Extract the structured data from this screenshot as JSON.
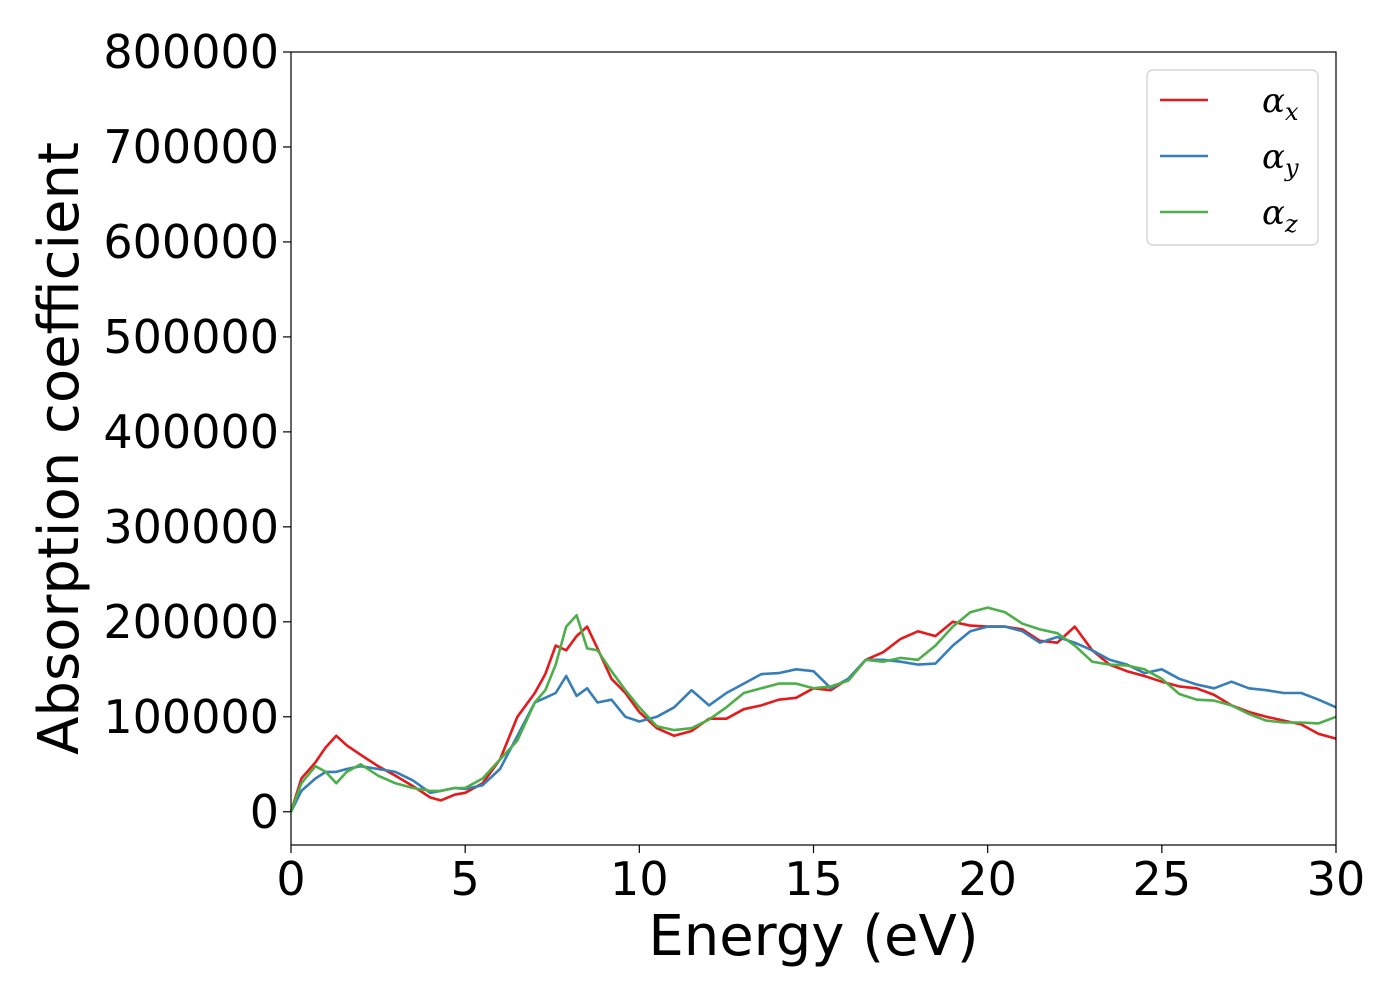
{
  "chart_data": {
    "type": "line",
    "title": "",
    "xlabel": "Energy (eV)",
    "ylabel": "Absorption coefficient",
    "xlim": [
      0,
      30
    ],
    "ylim": [
      -35000,
      800000
    ],
    "xticks": [
      0,
      5,
      10,
      15,
      20,
      25,
      30
    ],
    "yticks": [
      0,
      100000,
      200000,
      300000,
      400000,
      500000,
      600000,
      700000,
      800000
    ],
    "xtick_labels": [
      "0",
      "5",
      "10",
      "15",
      "20",
      "25",
      "30"
    ],
    "ytick_labels": [
      "0",
      "100000",
      "200000",
      "300000",
      "400000",
      "500000",
      "600000",
      "700000",
      "800000"
    ],
    "grid": false,
    "legend_position": "top-right",
    "series": [
      {
        "name": "αx",
        "base": "α",
        "sub": "x",
        "color": "#e41a1c",
        "x": [
          0,
          0.3,
          0.7,
          1.0,
          1.3,
          1.6,
          2.0,
          2.5,
          3.0,
          3.5,
          4.0,
          4.3,
          4.7,
          5.0,
          5.5,
          6.0,
          6.5,
          7.0,
          7.3,
          7.6,
          7.9,
          8.2,
          8.5,
          8.8,
          9.2,
          9.6,
          10.0,
          10.5,
          11.0,
          11.5,
          12.0,
          12.5,
          13.0,
          13.5,
          14.0,
          14.5,
          15.0,
          15.5,
          16.0,
          16.5,
          17.0,
          17.5,
          18.0,
          18.5,
          19.0,
          19.5,
          20.0,
          20.5,
          21.0,
          21.5,
          22.0,
          22.5,
          23.0,
          23.5,
          24.0,
          24.5,
          25.0,
          25.5,
          26.0,
          26.5,
          27.0,
          27.5,
          28.0,
          28.5,
          29.0,
          29.5,
          30.0
        ],
        "y": [
          0,
          35000,
          52000,
          68000,
          80000,
          70000,
          60000,
          48000,
          38000,
          27000,
          15000,
          12000,
          18000,
          20000,
          30000,
          55000,
          100000,
          125000,
          145000,
          175000,
          170000,
          185000,
          195000,
          172000,
          140000,
          125000,
          105000,
          88000,
          80000,
          85000,
          98000,
          98000,
          108000,
          112000,
          118000,
          120000,
          130000,
          128000,
          140000,
          160000,
          168000,
          182000,
          190000,
          185000,
          200000,
          196000,
          195000,
          195000,
          192000,
          180000,
          178000,
          195000,
          170000,
          155000,
          148000,
          143000,
          137000,
          132000,
          130000,
          123000,
          112000,
          105000,
          100000,
          96000,
          92000,
          82000,
          77000
        ]
      },
      {
        "name": "αy",
        "base": "α",
        "sub": "y",
        "color": "#377eb8",
        "x": [
          0,
          0.3,
          0.7,
          1.0,
          1.3,
          1.6,
          2.0,
          2.5,
          3.0,
          3.5,
          4.0,
          4.3,
          4.7,
          5.0,
          5.5,
          6.0,
          6.5,
          7.0,
          7.3,
          7.6,
          7.9,
          8.2,
          8.5,
          8.8,
          9.2,
          9.6,
          10.0,
          10.5,
          11.0,
          11.5,
          12.0,
          12.5,
          13.0,
          13.5,
          14.0,
          14.5,
          15.0,
          15.5,
          16.0,
          16.5,
          17.0,
          17.5,
          18.0,
          18.5,
          19.0,
          19.5,
          20.0,
          20.5,
          21.0,
          21.5,
          22.0,
          22.5,
          23.0,
          23.5,
          24.0,
          24.5,
          25.0,
          25.5,
          26.0,
          26.5,
          27.0,
          27.5,
          28.0,
          28.5,
          29.0,
          29.5,
          30.0
        ],
        "y": [
          0,
          22000,
          35000,
          42000,
          42000,
          45000,
          48000,
          45000,
          42000,
          33000,
          20000,
          22000,
          25000,
          24000,
          28000,
          45000,
          80000,
          115000,
          120000,
          125000,
          143000,
          122000,
          130000,
          115000,
          118000,
          100000,
          95000,
          100000,
          110000,
          128000,
          112000,
          125000,
          135000,
          145000,
          146000,
          150000,
          148000,
          130000,
          140000,
          160000,
          160000,
          158000,
          155000,
          156000,
          175000,
          190000,
          195000,
          195000,
          190000,
          178000,
          184000,
          178000,
          170000,
          160000,
          155000,
          146000,
          150000,
          140000,
          134000,
          130000,
          137000,
          130000,
          128000,
          125000,
          125000,
          118000,
          110000
        ]
      },
      {
        "name": "αz",
        "base": "α",
        "sub": "z",
        "color": "#4daf4a",
        "x": [
          0,
          0.3,
          0.7,
          1.0,
          1.3,
          1.6,
          2.0,
          2.5,
          3.0,
          3.5,
          4.0,
          4.3,
          4.7,
          5.0,
          5.5,
          6.0,
          6.5,
          7.0,
          7.3,
          7.6,
          7.9,
          8.2,
          8.5,
          8.8,
          9.2,
          9.6,
          10.0,
          10.5,
          11.0,
          11.5,
          12.0,
          12.5,
          13.0,
          13.5,
          14.0,
          14.5,
          15.0,
          15.5,
          16.0,
          16.5,
          17.0,
          17.5,
          18.0,
          18.5,
          19.0,
          19.5,
          20.0,
          20.5,
          21.0,
          21.5,
          22.0,
          22.5,
          23.0,
          23.5,
          24.0,
          24.5,
          25.0,
          25.5,
          26.0,
          26.5,
          27.0,
          27.5,
          28.0,
          28.5,
          29.0,
          29.5,
          30.0
        ],
        "y": [
          0,
          30000,
          48000,
          42000,
          30000,
          42000,
          50000,
          38000,
          30000,
          25000,
          22000,
          22000,
          25000,
          25000,
          35000,
          55000,
          75000,
          115000,
          128000,
          155000,
          195000,
          207000,
          172000,
          170000,
          148000,
          128000,
          110000,
          90000,
          86000,
          88000,
          97000,
          110000,
          125000,
          130000,
          135000,
          135000,
          130000,
          132000,
          138000,
          160000,
          158000,
          162000,
          160000,
          175000,
          195000,
          210000,
          215000,
          210000,
          198000,
          192000,
          188000,
          175000,
          158000,
          155000,
          154000,
          150000,
          140000,
          124000,
          118000,
          117000,
          112000,
          103000,
          96000,
          94000,
          94000,
          93000,
          100000
        ]
      }
    ]
  }
}
